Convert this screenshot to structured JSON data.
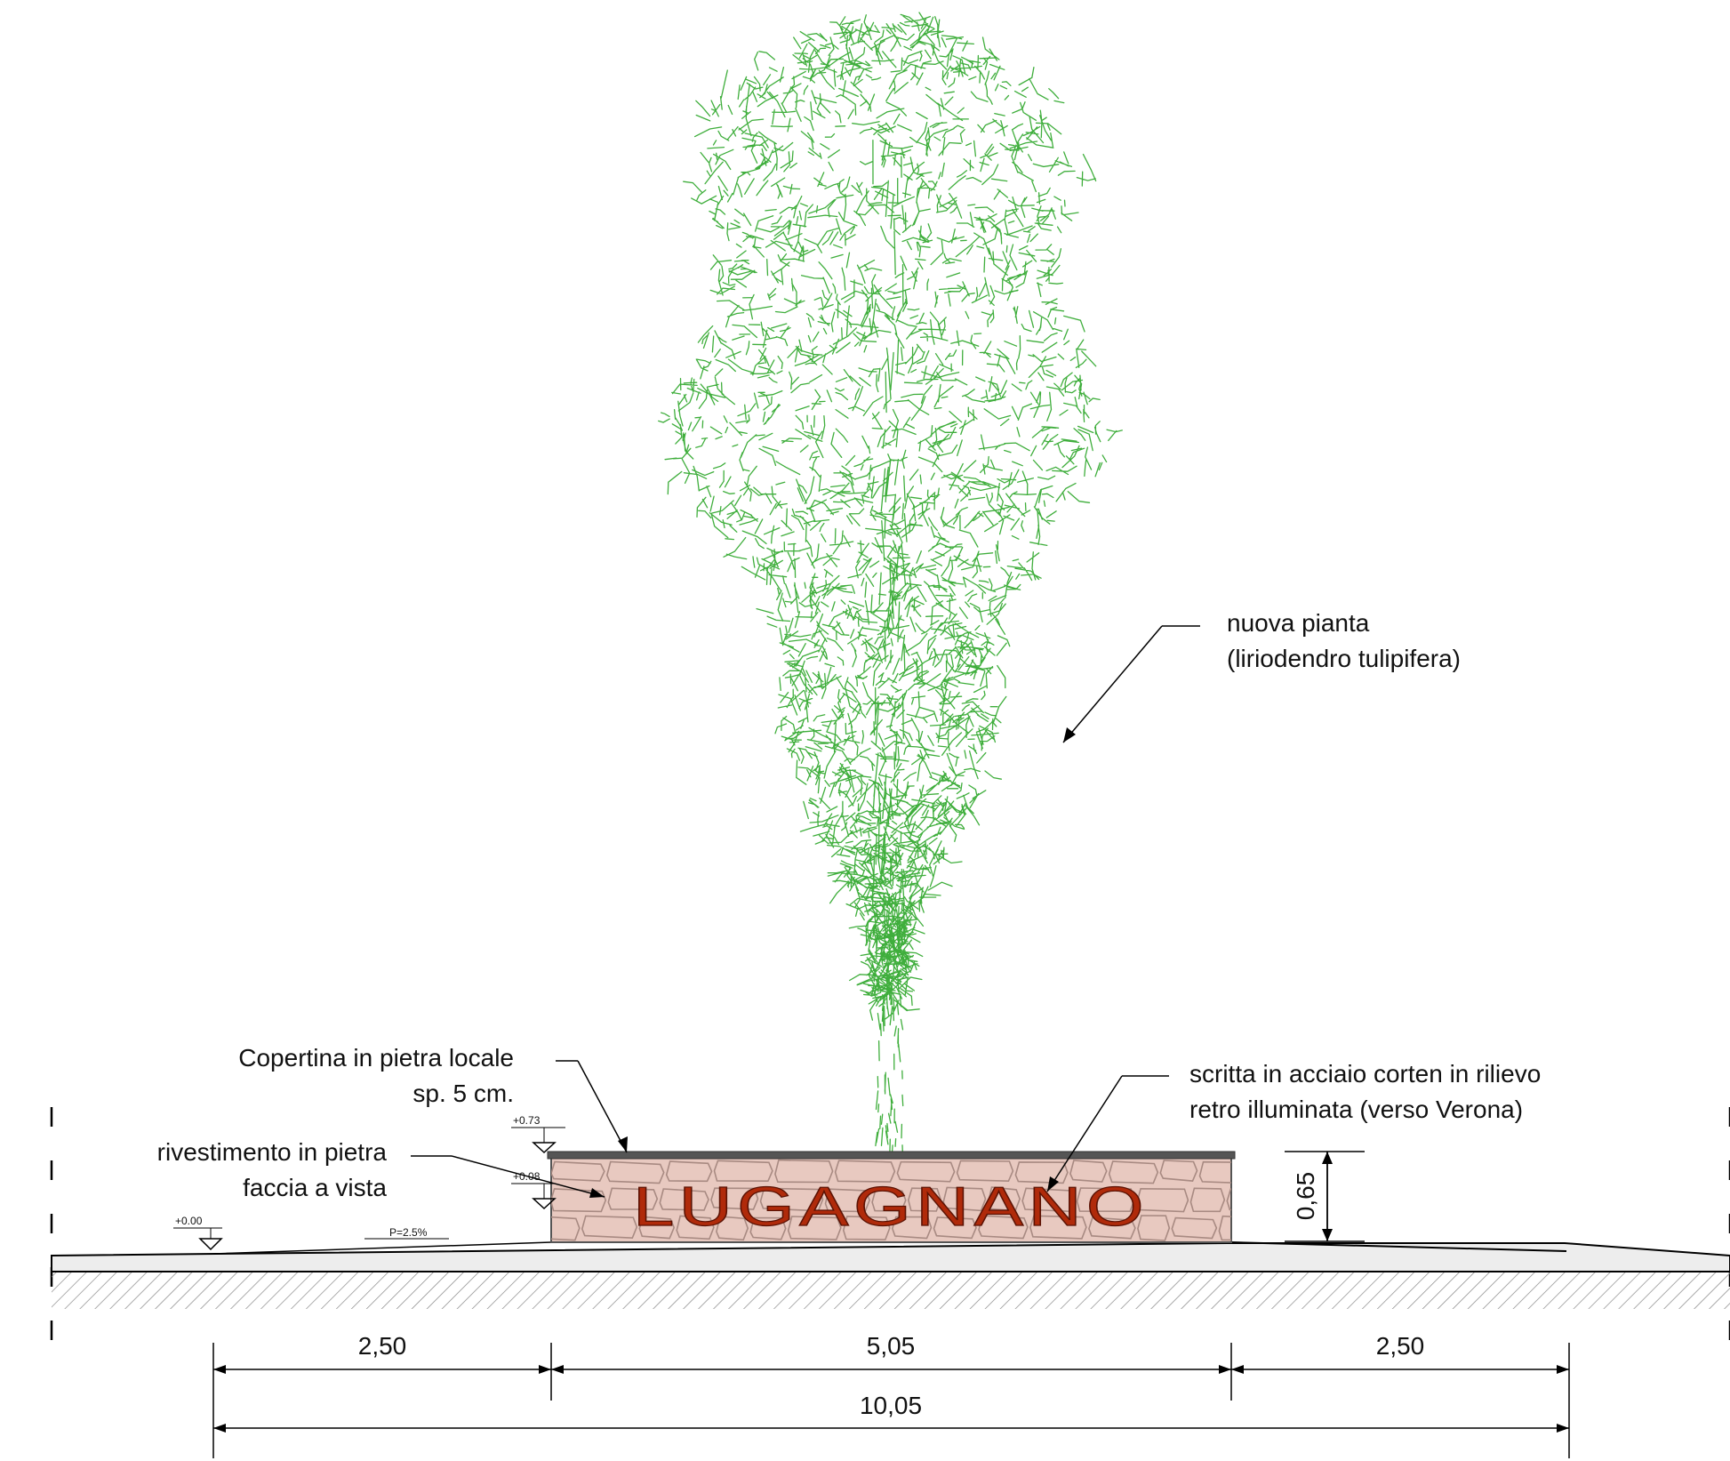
{
  "annotations": {
    "tree_line1": "nuova pianta",
    "tree_line2": "(liriodendro tulipifera)",
    "cap_line1": "Copertina in pietra locale",
    "cap_line2": "sp. 5 cm.",
    "cladding_line1": "rivestimento in pietra",
    "cladding_line2": "faccia a vista",
    "lettering_line1": "scritta in acciaio corten in rilievo",
    "lettering_line2": "retro illuminata (verso Verona)"
  },
  "sign_text": "LUGAGNANO",
  "levels": {
    "top": "+0.73",
    "base": "+0.08",
    "ground": "+0.00"
  },
  "slope": "P=2.5%",
  "dimensions": {
    "height": "0,65",
    "left": "2,50",
    "center": "5,05",
    "right": "2,50",
    "total": "10,05"
  },
  "colors": {
    "tree": "#3fae3c",
    "stone_fill": "#e8c9c0",
    "stone_joints": "#a88a82",
    "lettering": "#b02a0a",
    "cap": "#555555"
  }
}
